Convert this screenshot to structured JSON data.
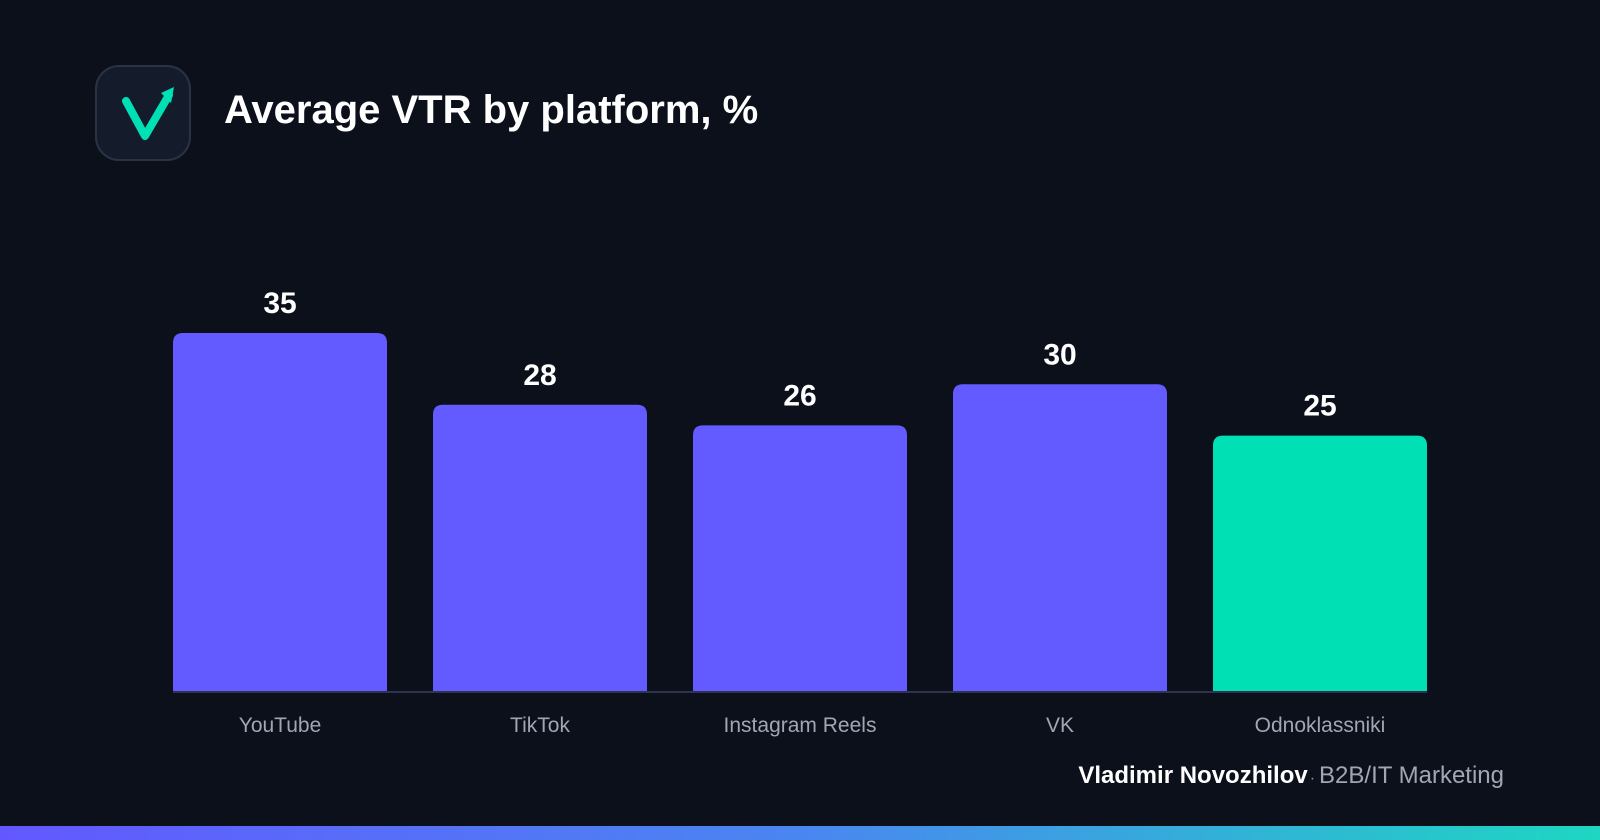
{
  "colors": {
    "background": "#0b101b",
    "bar_default": "#635bff",
    "bar_highlight": "#00e0b5",
    "axis_line": "#2e3450",
    "logo_accent": "#00e0b5"
  },
  "logo": {
    "icon": "check-arrow-logo-icon"
  },
  "title": "Average VTR by platform, %",
  "chart_data": {
    "type": "bar",
    "title": "Average VTR by platform, %",
    "xlabel": "",
    "ylabel": "",
    "categories": [
      "YouTube",
      "TikTok",
      "Instagram Reels",
      "VK",
      "Odnoklassniki"
    ],
    "values": [
      35,
      28,
      26,
      30,
      25
    ],
    "highlight_index": 4,
    "ylim": [
      0,
      35
    ],
    "grid": false,
    "legend": "none"
  },
  "footer": {
    "author": "Vladimir Novozhilov",
    "separator": "·",
    "role": "B2B/IT Marketing"
  }
}
